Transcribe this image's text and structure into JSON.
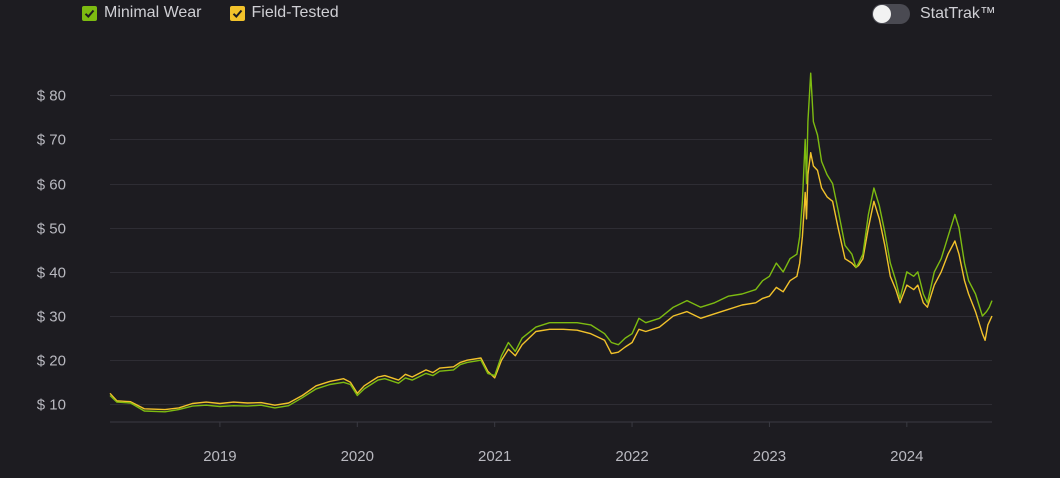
{
  "legend": {
    "items": [
      {
        "label": "Minimal Wear",
        "color": "#7dbb11"
      },
      {
        "label": "Field-Tested",
        "color": "#f2c22b"
      }
    ]
  },
  "stattrak": {
    "label": "StatTrak™",
    "enabled": false
  },
  "chart_data": {
    "type": "line",
    "title": "",
    "xlabel": "",
    "ylabel": "",
    "y_tick_labels": [
      "$ 10",
      "$ 20",
      "$ 30",
      "$ 40",
      "$ 50",
      "$ 60",
      "$ 70",
      "$ 80"
    ],
    "y_ticks": [
      10,
      20,
      30,
      40,
      50,
      60,
      70,
      80
    ],
    "ylim": [
      6,
      88
    ],
    "x_tick_labels": [
      "2019",
      "2020",
      "2021",
      "2022",
      "2023",
      "2024"
    ],
    "x_ticks": [
      2019,
      2020,
      2021,
      2022,
      2023,
      2024
    ],
    "xlim": [
      2018.2,
      2024.62
    ],
    "grid": true,
    "legend_position": "top-left",
    "series": [
      {
        "name": "Minimal Wear",
        "color": "#7dbb11",
        "points": [
          [
            2018.2,
            12
          ],
          [
            2018.25,
            10.5
          ],
          [
            2018.35,
            10.3
          ],
          [
            2018.45,
            8.5
          ],
          [
            2018.6,
            8.3
          ],
          [
            2018.7,
            8.8
          ],
          [
            2018.8,
            9.6
          ],
          [
            2018.9,
            9.8
          ],
          [
            2019.0,
            9.5
          ],
          [
            2019.1,
            9.7
          ],
          [
            2019.2,
            9.6
          ],
          [
            2019.3,
            9.8
          ],
          [
            2019.4,
            9.2
          ],
          [
            2019.5,
            9.7
          ],
          [
            2019.6,
            11.5
          ],
          [
            2019.7,
            13.5
          ],
          [
            2019.8,
            14.5
          ],
          [
            2019.9,
            15
          ],
          [
            2019.95,
            14.5
          ],
          [
            2020.0,
            12
          ],
          [
            2020.05,
            13.5
          ],
          [
            2020.15,
            15.5
          ],
          [
            2020.2,
            15.8
          ],
          [
            2020.3,
            14.8
          ],
          [
            2020.35,
            16
          ],
          [
            2020.4,
            15.5
          ],
          [
            2020.5,
            17
          ],
          [
            2020.55,
            16.5
          ],
          [
            2020.6,
            17.5
          ],
          [
            2020.7,
            17.8
          ],
          [
            2020.75,
            19
          ],
          [
            2020.8,
            19.5
          ],
          [
            2020.9,
            20
          ],
          [
            2020.95,
            17
          ],
          [
            2021.0,
            16.5
          ],
          [
            2021.05,
            21
          ],
          [
            2021.1,
            24
          ],
          [
            2021.15,
            22
          ],
          [
            2021.2,
            25
          ],
          [
            2021.3,
            27.5
          ],
          [
            2021.4,
            28.5
          ],
          [
            2021.5,
            28.5
          ],
          [
            2021.6,
            28.5
          ],
          [
            2021.7,
            28
          ],
          [
            2021.8,
            26
          ],
          [
            2021.85,
            24
          ],
          [
            2021.9,
            23.5
          ],
          [
            2021.95,
            25
          ],
          [
            2022.0,
            26
          ],
          [
            2022.05,
            29.5
          ],
          [
            2022.1,
            28.5
          ],
          [
            2022.2,
            29.5
          ],
          [
            2022.3,
            32
          ],
          [
            2022.4,
            33.5
          ],
          [
            2022.5,
            32
          ],
          [
            2022.6,
            33
          ],
          [
            2022.7,
            34.5
          ],
          [
            2022.8,
            35
          ],
          [
            2022.9,
            36
          ],
          [
            2022.95,
            38
          ],
          [
            2023.0,
            39
          ],
          [
            2023.05,
            42
          ],
          [
            2023.1,
            40
          ],
          [
            2023.15,
            43
          ],
          [
            2023.2,
            44
          ],
          [
            2023.22,
            48
          ],
          [
            2023.24,
            56
          ],
          [
            2023.26,
            70
          ],
          [
            2023.27,
            60
          ],
          [
            2023.28,
            74
          ],
          [
            2023.3,
            85
          ],
          [
            2023.32,
            74
          ],
          [
            2023.35,
            71
          ],
          [
            2023.38,
            65
          ],
          [
            2023.42,
            62
          ],
          [
            2023.46,
            60
          ],
          [
            2023.5,
            54
          ],
          [
            2023.55,
            46
          ],
          [
            2023.6,
            44
          ],
          [
            2023.63,
            41
          ],
          [
            2023.65,
            42
          ],
          [
            2023.68,
            44
          ],
          [
            2023.72,
            53
          ],
          [
            2023.76,
            59
          ],
          [
            2023.8,
            55
          ],
          [
            2023.84,
            49
          ],
          [
            2023.88,
            42
          ],
          [
            2023.92,
            38
          ],
          [
            2023.95,
            34
          ],
          [
            2024.0,
            40
          ],
          [
            2024.05,
            39
          ],
          [
            2024.08,
            40
          ],
          [
            2024.12,
            35
          ],
          [
            2024.15,
            33
          ],
          [
            2024.2,
            40
          ],
          [
            2024.25,
            43
          ],
          [
            2024.3,
            48
          ],
          [
            2024.35,
            53
          ],
          [
            2024.38,
            50
          ],
          [
            2024.42,
            42
          ],
          [
            2024.45,
            38
          ],
          [
            2024.5,
            35
          ],
          [
            2024.55,
            30
          ],
          [
            2024.58,
            31
          ],
          [
            2024.6,
            32
          ],
          [
            2024.62,
            33.5
          ]
        ]
      },
      {
        "name": "Field-Tested",
        "color": "#f2c22b",
        "points": [
          [
            2018.2,
            12.5
          ],
          [
            2018.25,
            10.8
          ],
          [
            2018.35,
            10.6
          ],
          [
            2018.45,
            9
          ],
          [
            2018.6,
            8.8
          ],
          [
            2018.7,
            9.2
          ],
          [
            2018.8,
            10.2
          ],
          [
            2018.9,
            10.5
          ],
          [
            2019.0,
            10.2
          ],
          [
            2019.1,
            10.5
          ],
          [
            2019.2,
            10.3
          ],
          [
            2019.3,
            10.4
          ],
          [
            2019.4,
            9.8
          ],
          [
            2019.5,
            10.3
          ],
          [
            2019.6,
            12
          ],
          [
            2019.7,
            14.2
          ],
          [
            2019.8,
            15.2
          ],
          [
            2019.9,
            15.8
          ],
          [
            2019.95,
            15
          ],
          [
            2020.0,
            12.5
          ],
          [
            2020.05,
            14.2
          ],
          [
            2020.15,
            16.2
          ],
          [
            2020.2,
            16.5
          ],
          [
            2020.3,
            15.5
          ],
          [
            2020.35,
            16.8
          ],
          [
            2020.4,
            16.2
          ],
          [
            2020.5,
            17.8
          ],
          [
            2020.55,
            17.2
          ],
          [
            2020.6,
            18.2
          ],
          [
            2020.7,
            18.5
          ],
          [
            2020.75,
            19.5
          ],
          [
            2020.8,
            20
          ],
          [
            2020.9,
            20.5
          ],
          [
            2020.95,
            17.5
          ],
          [
            2021.0,
            16
          ],
          [
            2021.05,
            20
          ],
          [
            2021.1,
            22.5
          ],
          [
            2021.15,
            21
          ],
          [
            2021.2,
            23.5
          ],
          [
            2021.3,
            26.5
          ],
          [
            2021.4,
            27
          ],
          [
            2021.5,
            27
          ],
          [
            2021.6,
            26.8
          ],
          [
            2021.7,
            26
          ],
          [
            2021.8,
            24.5
          ],
          [
            2021.85,
            21.5
          ],
          [
            2021.9,
            21.8
          ],
          [
            2021.95,
            23
          ],
          [
            2022.0,
            24
          ],
          [
            2022.05,
            27
          ],
          [
            2022.1,
            26.5
          ],
          [
            2022.2,
            27.5
          ],
          [
            2022.3,
            30
          ],
          [
            2022.4,
            31
          ],
          [
            2022.5,
            29.5
          ],
          [
            2022.6,
            30.5
          ],
          [
            2022.7,
            31.5
          ],
          [
            2022.8,
            32.5
          ],
          [
            2022.9,
            33
          ],
          [
            2022.95,
            34
          ],
          [
            2023.0,
            34.5
          ],
          [
            2023.05,
            36.5
          ],
          [
            2023.1,
            35.5
          ],
          [
            2023.15,
            38
          ],
          [
            2023.2,
            39
          ],
          [
            2023.22,
            42
          ],
          [
            2023.24,
            48
          ],
          [
            2023.26,
            58
          ],
          [
            2023.27,
            52
          ],
          [
            2023.28,
            62
          ],
          [
            2023.3,
            67
          ],
          [
            2023.32,
            64
          ],
          [
            2023.35,
            63
          ],
          [
            2023.38,
            59
          ],
          [
            2023.42,
            57
          ],
          [
            2023.46,
            56
          ],
          [
            2023.5,
            50
          ],
          [
            2023.55,
            43
          ],
          [
            2023.6,
            42
          ],
          [
            2023.63,
            41
          ],
          [
            2023.65,
            41.5
          ],
          [
            2023.68,
            43
          ],
          [
            2023.72,
            50
          ],
          [
            2023.76,
            56
          ],
          [
            2023.8,
            52
          ],
          [
            2023.84,
            46
          ],
          [
            2023.88,
            39
          ],
          [
            2023.92,
            36
          ],
          [
            2023.95,
            33
          ],
          [
            2024.0,
            37
          ],
          [
            2024.05,
            36
          ],
          [
            2024.08,
            37
          ],
          [
            2024.12,
            33
          ],
          [
            2024.15,
            32
          ],
          [
            2024.2,
            37
          ],
          [
            2024.25,
            40
          ],
          [
            2024.3,
            44
          ],
          [
            2024.35,
            47
          ],
          [
            2024.38,
            44
          ],
          [
            2024.42,
            38
          ],
          [
            2024.45,
            35
          ],
          [
            2024.5,
            31
          ],
          [
            2024.55,
            26
          ],
          [
            2024.57,
            24.5
          ],
          [
            2024.59,
            28
          ],
          [
            2024.62,
            30
          ]
        ]
      }
    ]
  }
}
